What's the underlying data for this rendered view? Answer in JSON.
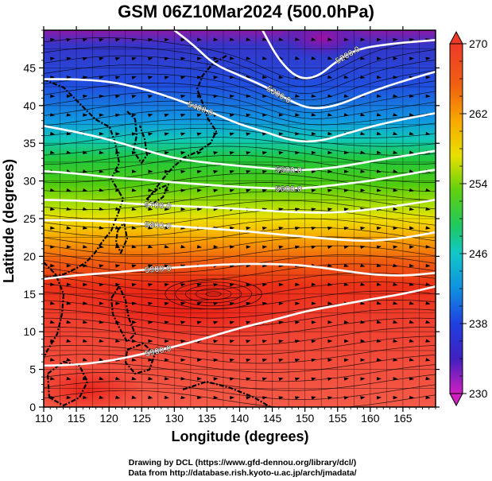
{
  "title": "GSM 06Z10Mar2024 (500.0hPa)",
  "x_axis": {
    "label": "Longitude (degrees)",
    "range": [
      110,
      170
    ],
    "ticks": [
      110,
      115,
      120,
      125,
      130,
      135,
      140,
      145,
      150,
      155,
      160,
      165
    ],
    "tick_labels": [
      "110",
      "115",
      "120",
      "125",
      "130",
      "135",
      "140",
      "145",
      "150",
      "155",
      "160",
      "165"
    ]
  },
  "y_axis": {
    "label": "Latitude  (degrees)",
    "range": [
      0,
      50
    ],
    "ticks": [
      0,
      5,
      10,
      15,
      20,
      25,
      30,
      35,
      40,
      45
    ],
    "tick_labels": [
      "0",
      "5",
      "10",
      "15",
      "20",
      "25",
      "30",
      "35",
      "40",
      "45"
    ]
  },
  "colorbar": {
    "range": [
      230,
      270
    ],
    "tick_labels": [
      "270",
      "262",
      "254",
      "246",
      "238",
      "230"
    ],
    "tick_values": [
      270,
      262,
      254,
      246,
      238,
      230
    ]
  },
  "contours": [
    {
      "label": "5200.0",
      "points": [
        [
          143.5,
          50
        ],
        [
          146,
          46
        ],
        [
          149,
          43.5
        ],
        [
          152,
          43.8
        ],
        [
          155,
          46
        ],
        [
          158,
          47.5
        ],
        [
          163,
          48.2
        ],
        [
          170,
          48.7
        ]
      ]
    },
    {
      "label": "5300.0",
      "points": [
        [
          130,
          50
        ],
        [
          133,
          48
        ],
        [
          136,
          45.5
        ],
        [
          140,
          44
        ],
        [
          144,
          42.5
        ],
        [
          148,
          40.5
        ],
        [
          151,
          39.5
        ],
        [
          155,
          40
        ],
        [
          159,
          41.5
        ],
        [
          164,
          43
        ],
        [
          170,
          44.5
        ]
      ]
    },
    {
      "label": "5400.0",
      "points": [
        [
          110,
          43.5
        ],
        [
          115,
          43.5
        ],
        [
          120,
          43.2
        ],
        [
          124,
          42.5
        ],
        [
          128,
          41.5
        ],
        [
          132,
          40.3
        ],
        [
          136,
          39
        ],
        [
          140,
          37.5
        ],
        [
          144,
          36.5
        ],
        [
          148,
          35.3
        ],
        [
          152,
          35.2
        ],
        [
          156,
          36.2
        ],
        [
          160,
          37.2
        ],
        [
          165,
          38.2
        ],
        [
          170,
          39
        ]
      ]
    },
    {
      "label": "5500.0",
      "points": [
        [
          110,
          37.3
        ],
        [
          115,
          36.5
        ],
        [
          120,
          35.5
        ],
        [
          125,
          34.2
        ],
        [
          130,
          33
        ],
        [
          135,
          32.4
        ],
        [
          140,
          32
        ],
        [
          145,
          31.6
        ],
        [
          150,
          31.4
        ],
        [
          155,
          31.8
        ],
        [
          160,
          32.6
        ],
        [
          165,
          33.3
        ],
        [
          170,
          34
        ]
      ]
    },
    {
      "label": "5600.0",
      "points": [
        [
          110,
          31.3
        ],
        [
          115,
          31
        ],
        [
          120,
          30.5
        ],
        [
          125,
          30.2
        ],
        [
          130,
          29.8
        ],
        [
          135,
          29.5
        ],
        [
          140,
          29.2
        ],
        [
          145,
          29
        ],
        [
          150,
          29
        ],
        [
          155,
          29.5
        ],
        [
          160,
          30
        ],
        [
          165,
          30.8
        ],
        [
          170,
          31.5
        ]
      ]
    },
    {
      "label": "5700.0",
      "points": [
        [
          110,
          27.5
        ],
        [
          115,
          27.4
        ],
        [
          120,
          27.2
        ],
        [
          125,
          26.9
        ],
        [
          130,
          26.7
        ],
        [
          135,
          26.5
        ],
        [
          140,
          26.3
        ],
        [
          145,
          26
        ],
        [
          150,
          25.8
        ],
        [
          155,
          25.8
        ],
        [
          160,
          26.2
        ],
        [
          165,
          26.8
        ],
        [
          170,
          27.5
        ]
      ]
    },
    {
      "label": "5800.0",
      "points": [
        [
          110,
          24.8
        ],
        [
          115,
          24.8
        ],
        [
          120,
          24.6
        ],
        [
          125,
          24.3
        ],
        [
          130,
          24
        ],
        [
          135,
          23.7
        ],
        [
          140,
          23.4
        ],
        [
          145,
          23
        ],
        [
          150,
          22.6
        ],
        [
          155,
          22.2
        ],
        [
          160,
          22
        ],
        [
          165,
          22.4
        ],
        [
          170,
          23.2
        ]
      ]
    },
    {
      "label": "5900.0",
      "points": [
        [
          110,
          17
        ],
        [
          115,
          17.5
        ],
        [
          120,
          17.8
        ],
        [
          125,
          18.2
        ],
        [
          130,
          18.5
        ],
        [
          135,
          18.8
        ],
        [
          140,
          19
        ],
        [
          145,
          19
        ],
        [
          150,
          18.8
        ],
        [
          155,
          18.2
        ],
        [
          160,
          17.6
        ],
        [
          165,
          17.4
        ],
        [
          170,
          17.8
        ]
      ]
    },
    {
      "label": "5900.0",
      "points": [
        [
          110,
          5.5
        ],
        [
          115,
          5.6
        ],
        [
          120,
          6.1
        ],
        [
          125,
          7
        ],
        [
          130,
          8
        ],
        [
          135,
          9.2
        ],
        [
          140,
          10.5
        ],
        [
          145,
          11.5
        ],
        [
          150,
          12.7
        ],
        [
          155,
          13.5
        ],
        [
          160,
          14.3
        ],
        [
          165,
          15
        ],
        [
          170,
          16
        ]
      ]
    }
  ]
}
